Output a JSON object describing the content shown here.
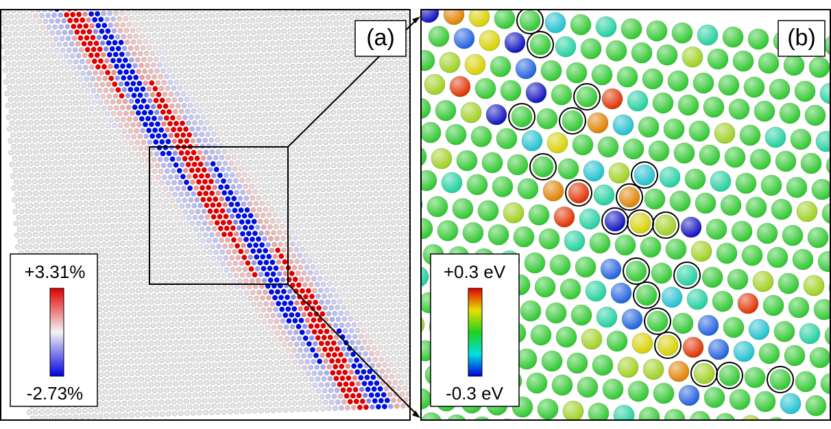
{
  "panels": [
    {
      "label": "(a)",
      "colorbar": {
        "max": "+3.31%",
        "min": "-2.73%"
      }
    },
    {
      "label": "(b)",
      "colorbar": {
        "max": "+0.3 eV",
        "min": "-0.3 eV"
      }
    }
  ]
}
